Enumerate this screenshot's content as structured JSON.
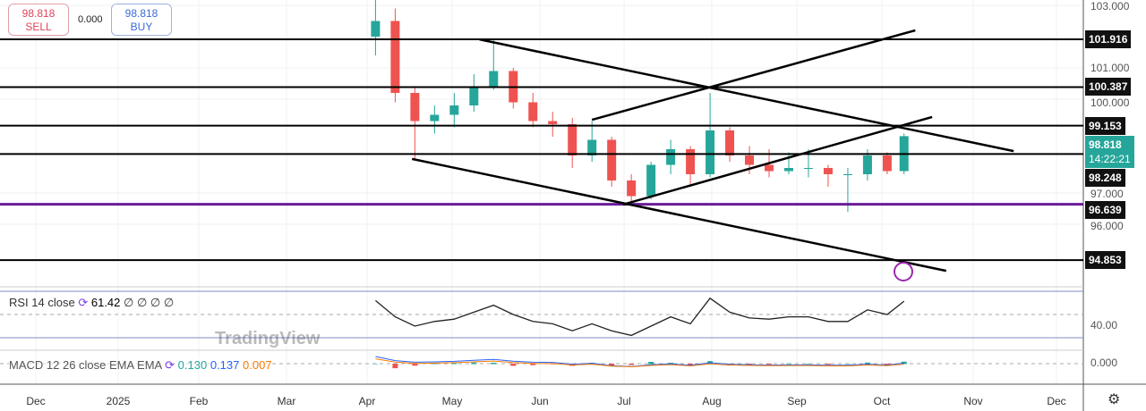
{
  "trade": {
    "sell_price": "98.818",
    "sell_label": "SELL",
    "spread": "0.000",
    "buy_price": "98.818",
    "buy_label": "BUY"
  },
  "chart_data": {
    "type": "candlestick",
    "ylim": [
      93.7,
      103.2
    ],
    "y_ticks": [
      "103.000",
      "101.000",
      "100.000",
      "97.000",
      "96.000"
    ],
    "x_ticks": [
      "Dec",
      "2025",
      "Feb",
      "Mar",
      "Apr",
      "May",
      "Jun",
      "Jul",
      "Aug",
      "Sep",
      "Oct",
      "Nov",
      "Dec"
    ],
    "candles": [
      [
        "2025-04-04",
        102.0,
        103.2,
        101.4,
        102.5
      ],
      [
        "2025-04-11",
        102.5,
        102.9,
        99.9,
        100.2
      ],
      [
        "2025-04-18",
        100.2,
        100.4,
        98.1,
        99.3
      ],
      [
        "2025-04-25",
        99.3,
        99.8,
        98.9,
        99.5
      ],
      [
        "2025-05-02",
        99.5,
        100.2,
        99.1,
        99.8
      ],
      [
        "2025-05-09",
        99.8,
        100.8,
        99.6,
        100.4
      ],
      [
        "2025-05-16",
        100.4,
        101.9,
        100.3,
        100.9
      ],
      [
        "2025-05-23",
        100.9,
        101.0,
        99.7,
        99.9
      ],
      [
        "2025-05-30",
        99.9,
        100.2,
        99.1,
        99.3
      ],
      [
        "2025-06-06",
        99.3,
        99.6,
        98.8,
        99.2
      ],
      [
        "2025-06-13",
        99.2,
        99.4,
        97.8,
        98.2
      ],
      [
        "2025-06-20",
        98.2,
        99.3,
        98.0,
        98.7
      ],
      [
        "2025-06-27",
        98.7,
        98.8,
        97.2,
        97.4
      ],
      [
        "2025-07-04",
        97.4,
        97.6,
        96.6,
        96.9
      ],
      [
        "2025-07-11",
        96.9,
        98.0,
        96.8,
        97.9
      ],
      [
        "2025-07-18",
        97.9,
        98.7,
        97.6,
        98.4
      ],
      [
        "2025-07-25",
        98.4,
        98.5,
        97.2,
        97.6
      ],
      [
        "2025-08-01",
        97.6,
        100.2,
        97.5,
        99.0
      ],
      [
        "2025-08-08",
        99.0,
        99.1,
        98.0,
        98.2
      ],
      [
        "2025-08-15",
        98.2,
        98.5,
        97.6,
        97.9
      ],
      [
        "2025-08-22",
        97.9,
        98.4,
        97.5,
        97.7
      ],
      [
        "2025-08-29",
        97.7,
        98.3,
        97.6,
        97.8
      ],
      [
        "2025-09-05",
        97.8,
        98.4,
        97.5,
        97.8
      ],
      [
        "2025-09-12",
        97.8,
        97.9,
        97.2,
        97.6
      ],
      [
        "2025-09-19",
        97.6,
        97.8,
        96.4,
        97.6
      ],
      [
        "2025-09-26",
        97.6,
        98.4,
        97.4,
        98.2
      ],
      [
        "2025-10-03",
        98.2,
        98.3,
        97.6,
        97.7
      ],
      [
        "2025-10-09",
        97.7,
        98.9,
        97.6,
        98.818
      ]
    ],
    "horizontal_levels": [
      {
        "price": 101.916,
        "label": "101.916",
        "color": "#000000"
      },
      {
        "price": 100.387,
        "label": "100.387",
        "color": "#000000"
      },
      {
        "price": 99.153,
        "label": "99.153",
        "color": "#000000"
      },
      {
        "price": 98.248,
        "label": "98.248",
        "color": "#000000"
      },
      {
        "price": 96.639,
        "label": "96.639",
        "color": "#6a1b9a"
      },
      {
        "price": 94.853,
        "label": "94.853",
        "color": "#000000"
      }
    ],
    "trendlines": [
      [
        [
          "2025-05-11",
          101.91
        ],
        [
          "2025-11-17",
          98.34
        ]
      ],
      [
        [
          "2025-04-17",
          98.09
        ],
        [
          "2025-10-24",
          94.51
        ]
      ],
      [
        [
          "2025-07-01",
          96.63
        ],
        [
          "2025-10-19",
          99.43
        ]
      ],
      [
        [
          "2025-06-20",
          99.34
        ],
        [
          "2025-10-13",
          102.2
        ]
      ]
    ],
    "last_price": {
      "value": "98.818",
      "countdown": "14:22:21",
      "color": "#26a69a"
    },
    "rsi": {
      "label": "RSI 14 close",
      "value": "61.42",
      "extra": "∅ ∅ ∅ ∅",
      "tick": "40.00",
      "values": [
        62,
        48,
        40,
        44,
        46,
        52,
        58,
        50,
        44,
        42,
        36,
        42,
        36,
        32,
        40,
        48,
        42,
        64,
        52,
        47,
        46,
        48,
        48,
        44,
        44,
        54,
        50,
        61.42
      ]
    },
    "macd": {
      "label": "MACD 12 26 close EMA EMA",
      "macd": "0.130",
      "signal": "0.137",
      "hist": "0.007",
      "tick": "0.000",
      "colors": {
        "macd": "#26a69a",
        "signal": "#2962ff",
        "hist": "#f57c00"
      }
    },
    "watermark": "TradingView",
    "colors": {
      "up": "#26a69a",
      "down": "#ef5350"
    }
  }
}
